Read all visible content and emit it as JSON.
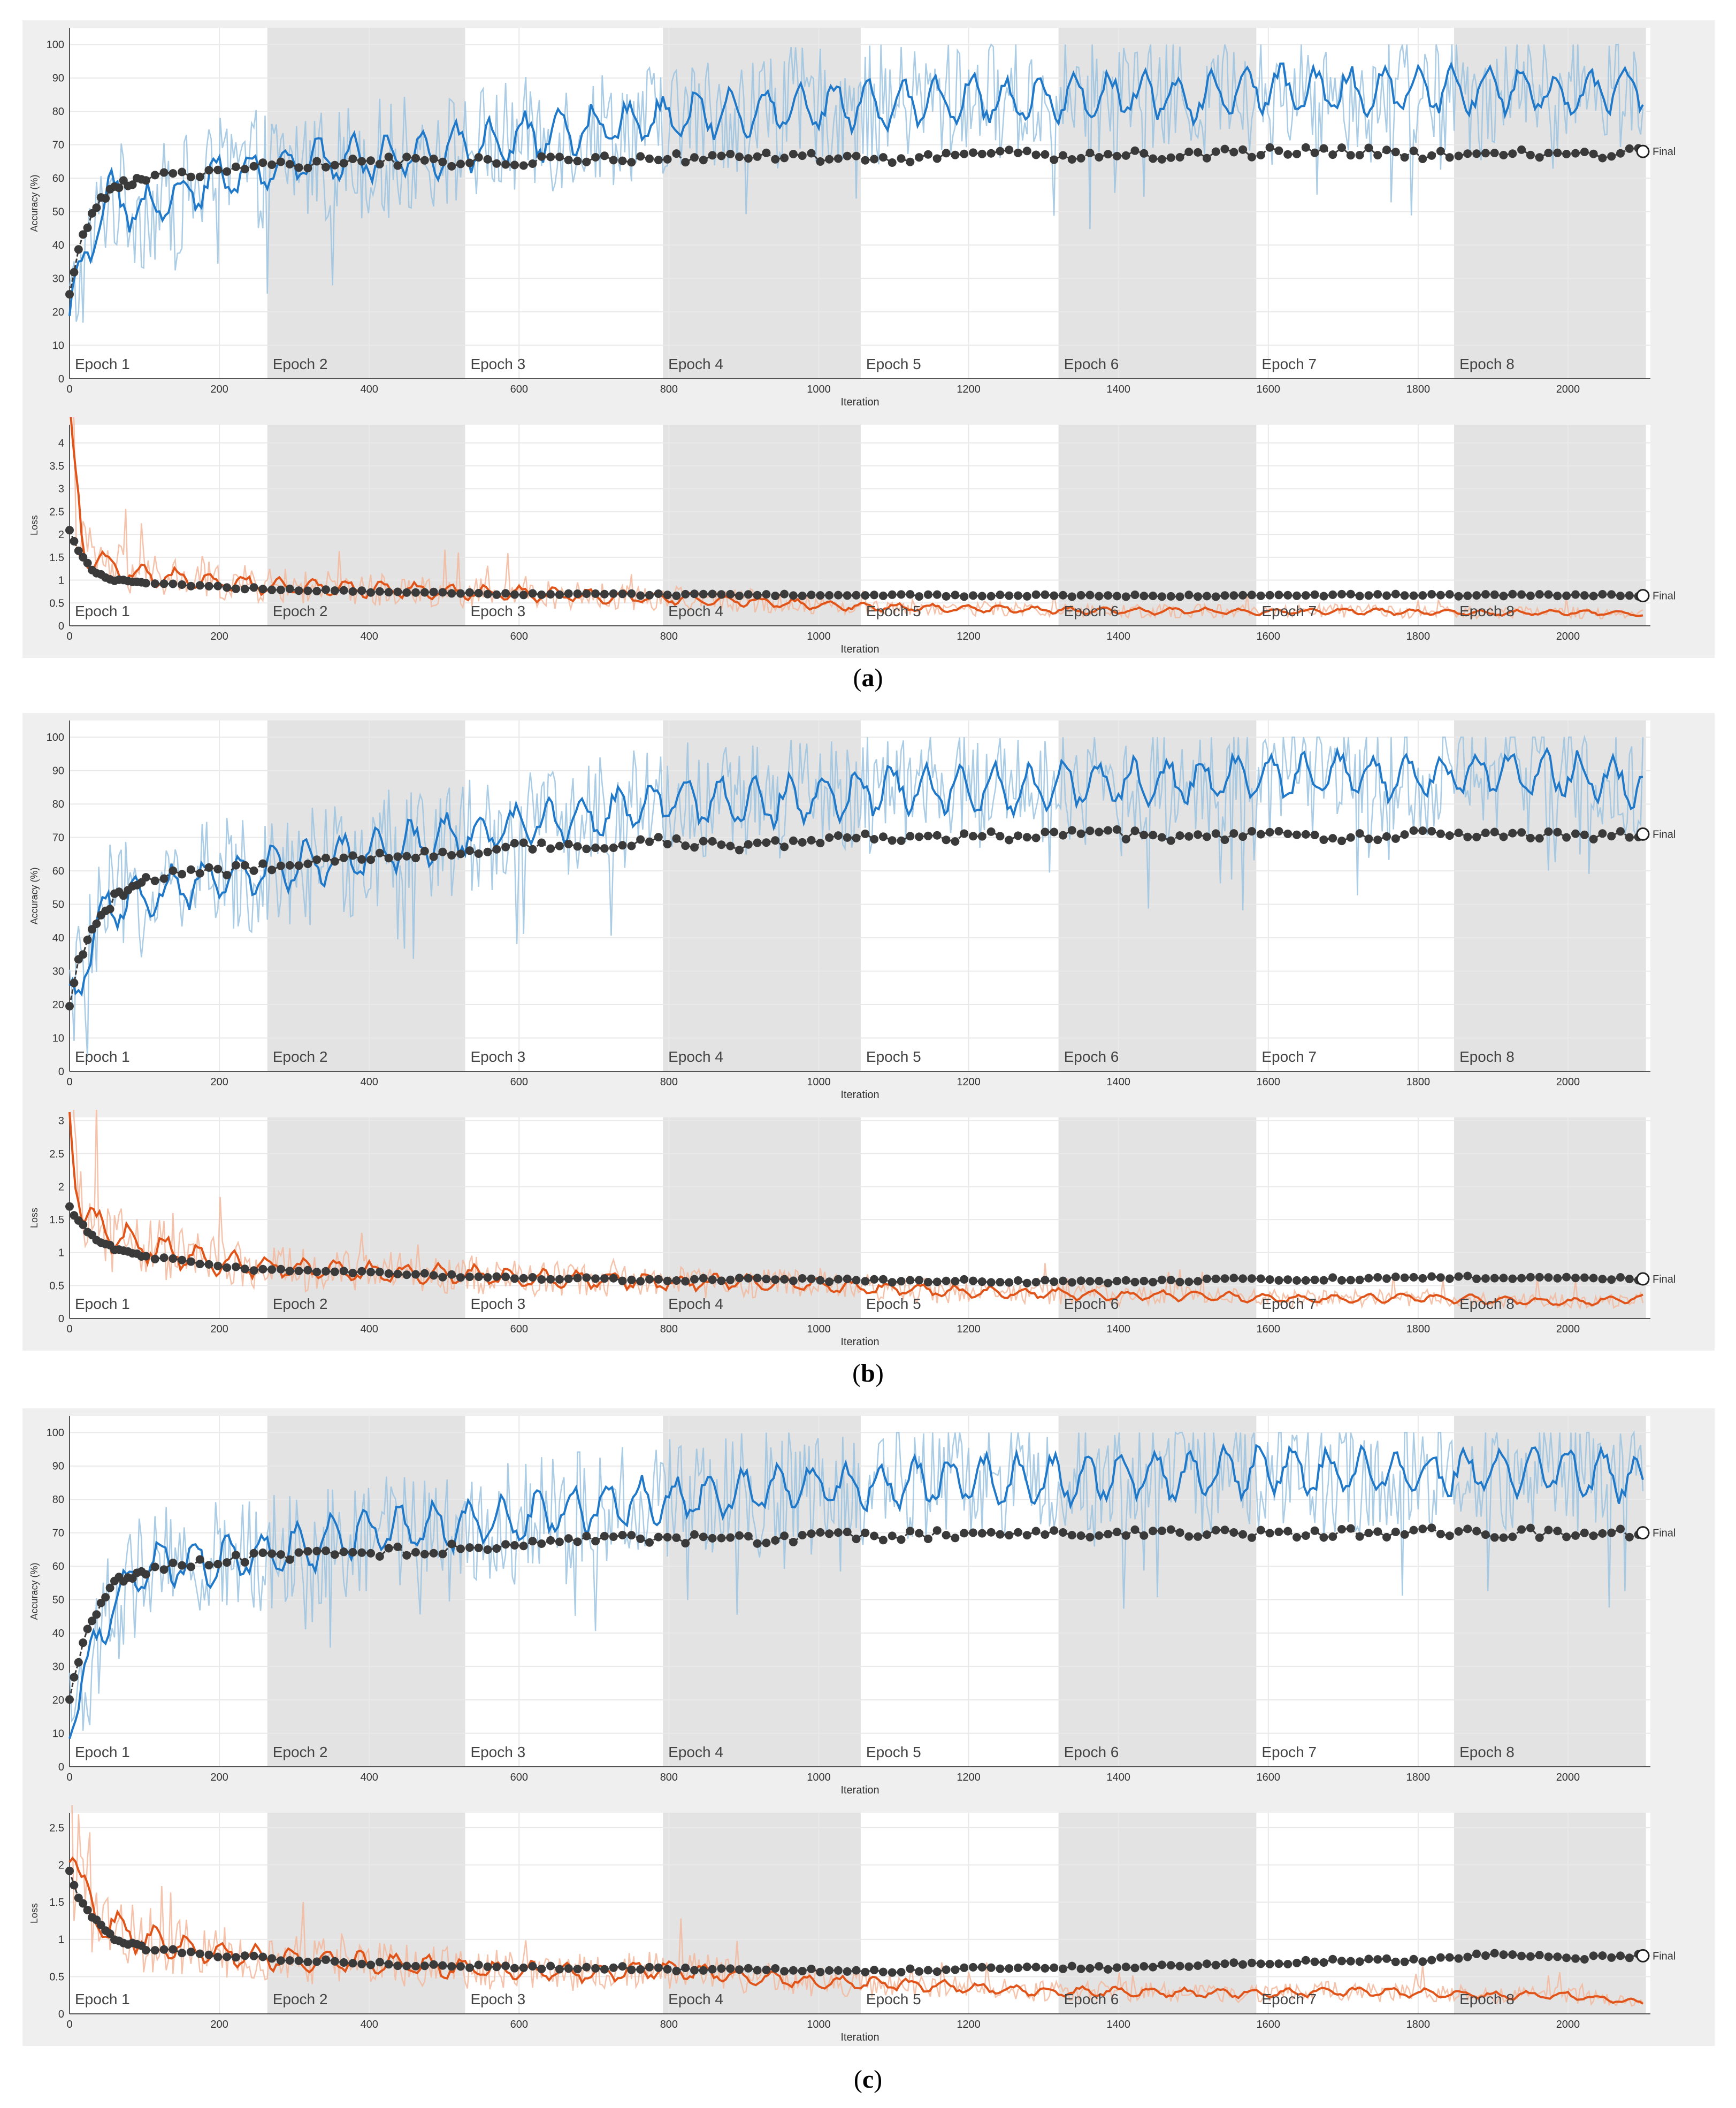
{
  "figure": {
    "panels": [
      {
        "caption_open": "(",
        "caption_letter": "a",
        "caption_close": ")"
      },
      {
        "caption_open": "(",
        "caption_letter": "b",
        "caption_close": ")"
      },
      {
        "caption_open": "(",
        "caption_letter": "c",
        "caption_close": ")"
      }
    ]
  },
  "colors": {
    "accuracy_smoothed": "#1f78c8",
    "accuracy_raw": "#9cc3e0",
    "loss_smoothed": "#e0541a",
    "loss_raw": "#f3b89c",
    "validation": "#3a3a3a",
    "epoch_shade": "#e3e3e3",
    "grid": "#e9e9e9"
  },
  "chart_data": [
    {
      "type": "line",
      "panel": "a",
      "metric": "accuracy",
      "xlabel": "Iteration",
      "ylabel": "Accuracy (%)",
      "xlim": [
        0,
        2110
      ],
      "ylim": [
        0,
        105
      ],
      "xticks": [
        0,
        200,
        400,
        600,
        800,
        1000,
        1200,
        1400,
        1600,
        1800,
        2000
      ],
      "yticks": [
        0,
        10,
        20,
        30,
        40,
        50,
        60,
        70,
        80,
        90,
        100
      ],
      "epochs": [
        "Epoch 1",
        "Epoch 2",
        "Epoch 3",
        "Epoch 4",
        "Epoch 5",
        "Epoch 6",
        "Epoch 7",
        "Epoch 8"
      ],
      "epoch_starts": [
        0,
        264,
        528,
        792,
        1056,
        1320,
        1584,
        1848
      ],
      "final_label": "Final",
      "series": [
        {
          "role": "training_smoothed",
          "x": [
            0,
            50,
            100,
            200,
            300,
            400,
            500,
            600,
            700,
            800,
            900,
            1000,
            1100,
            1200,
            1300,
            1400,
            1500,
            1600,
            1700,
            1800,
            1900,
            2000,
            2100
          ],
          "y": [
            20,
            55,
            50,
            60,
            65,
            66,
            68,
            72,
            75,
            78,
            80,
            82,
            82,
            84,
            83,
            85,
            84,
            87,
            86,
            86,
            87,
            85,
            88
          ]
        },
        {
          "role": "validation",
          "x": [
            0,
            10,
            30,
            60,
            100,
            200,
            300,
            400,
            500,
            600,
            700,
            800,
            900,
            1000,
            1100,
            1200,
            1300,
            1400,
            1500,
            1600,
            1700,
            1800,
            1900,
            2000,
            2100
          ],
          "y": [
            25,
            38,
            50,
            58,
            60,
            62,
            64,
            65,
            65,
            65,
            66,
            66,
            67,
            66,
            66,
            67,
            67,
            67,
            67,
            68,
            68,
            67,
            68,
            67,
            68
          ]
        }
      ]
    },
    {
      "type": "line",
      "panel": "a",
      "metric": "loss",
      "xlabel": "Iteration",
      "ylabel": "Loss",
      "xlim": [
        0,
        2110
      ],
      "ylim": [
        0,
        4.4
      ],
      "xticks": [
        0,
        200,
        400,
        600,
        800,
        1000,
        1200,
        1400,
        1600,
        1800,
        2000
      ],
      "yticks": [
        0,
        0.5,
        1,
        1.5,
        2,
        2.5,
        3,
        3.5,
        4
      ],
      "epochs": [
        "Epoch 1",
        "Epoch 2",
        "Epoch 3",
        "Epoch 4",
        "Epoch 5",
        "Epoch 6",
        "Epoch 7",
        "Epoch 8"
      ],
      "epoch_starts": [
        0,
        264,
        528,
        792,
        1056,
        1320,
        1584,
        1848
      ],
      "final_label": "Final",
      "series": [
        {
          "role": "training_smoothed",
          "x": [
            0,
            20,
            50,
            100,
            200,
            300,
            400,
            500,
            600,
            700,
            800,
            900,
            1000,
            1100,
            1200,
            1300,
            1400,
            1500,
            1600,
            1700,
            1800,
            1900,
            2000,
            2100
          ],
          "y": [
            4.2,
            1.6,
            1.3,
            1.1,
            0.95,
            0.85,
            0.8,
            0.75,
            0.7,
            0.65,
            0.6,
            0.55,
            0.45,
            0.4,
            0.38,
            0.35,
            0.32,
            0.33,
            0.3,
            0.33,
            0.3,
            0.28,
            0.3,
            0.25
          ]
        },
        {
          "role": "validation",
          "x": [
            0,
            10,
            30,
            60,
            100,
            200,
            300,
            400,
            500,
            600,
            700,
            800,
            900,
            1000,
            1100,
            1200,
            1300,
            1400,
            1500,
            1600,
            1700,
            1800,
            1900,
            2000,
            2100
          ],
          "y": [
            2.1,
            1.7,
            1.2,
            1.0,
            0.95,
            0.85,
            0.78,
            0.75,
            0.72,
            0.7,
            0.68,
            0.68,
            0.68,
            0.67,
            0.67,
            0.66,
            0.66,
            0.66,
            0.66,
            0.66,
            0.67,
            0.67,
            0.67,
            0.68,
            0.66
          ]
        }
      ]
    },
    {
      "type": "line",
      "panel": "b",
      "metric": "accuracy",
      "xlabel": "Iteration",
      "ylabel": "Accuracy (%)",
      "xlim": [
        0,
        2110
      ],
      "ylim": [
        0,
        105
      ],
      "xticks": [
        0,
        200,
        400,
        600,
        800,
        1000,
        1200,
        1400,
        1600,
        1800,
        2000
      ],
      "yticks": [
        0,
        10,
        20,
        30,
        40,
        50,
        60,
        70,
        80,
        90,
        100
      ],
      "epochs": [
        "Epoch 1",
        "Epoch 2",
        "Epoch 3",
        "Epoch 4",
        "Epoch 5",
        "Epoch 6",
        "Epoch 7",
        "Epoch 8"
      ],
      "epoch_starts": [
        0,
        264,
        528,
        792,
        1056,
        1320,
        1584,
        1848
      ],
      "final_label": "Final",
      "series": [
        {
          "role": "training_smoothed",
          "x": [
            0,
            50,
            100,
            200,
            300,
            400,
            500,
            600,
            700,
            800,
            900,
            1000,
            1100,
            1200,
            1300,
            1400,
            1500,
            1600,
            1700,
            1800,
            1900,
            2000,
            2100
          ],
          "y": [
            20,
            50,
            52,
            58,
            62,
            65,
            70,
            73,
            76,
            82,
            80,
            82,
            85,
            84,
            85,
            86,
            87,
            88,
            89,
            88,
            90,
            89,
            86
          ]
        },
        {
          "role": "validation",
          "x": [
            0,
            10,
            30,
            60,
            100,
            200,
            300,
            400,
            500,
            600,
            700,
            800,
            900,
            1000,
            1100,
            1200,
            1300,
            1400,
            1500,
            1600,
            1700,
            1800,
            1900,
            2000,
            2100
          ],
          "y": [
            20,
            32,
            42,
            52,
            58,
            60,
            62,
            64,
            66,
            67,
            68,
            69,
            67,
            69,
            70,
            70,
            71,
            71,
            70,
            71,
            70,
            71,
            71,
            71,
            71
          ]
        }
      ]
    },
    {
      "type": "line",
      "panel": "b",
      "metric": "loss",
      "xlabel": "Iteration",
      "ylabel": "Loss",
      "xlim": [
        0,
        2110
      ],
      "ylim": [
        0,
        3.05
      ],
      "xticks": [
        0,
        200,
        400,
        600,
        800,
        1000,
        1200,
        1400,
        1600,
        1800,
        2000
      ],
      "yticks": [
        0,
        0.5,
        1,
        1.5,
        2,
        2.5,
        3
      ],
      "epochs": [
        "Epoch 1",
        "Epoch 2",
        "Epoch 3",
        "Epoch 4",
        "Epoch 5",
        "Epoch 6",
        "Epoch 7",
        "Epoch 8"
      ],
      "epoch_starts": [
        0,
        264,
        528,
        792,
        1056,
        1320,
        1584,
        1848
      ],
      "final_label": "Final",
      "series": [
        {
          "role": "training_smoothed",
          "x": [
            0,
            20,
            50,
            100,
            200,
            300,
            400,
            500,
            600,
            700,
            800,
            900,
            1000,
            1100,
            1200,
            1300,
            1400,
            1500,
            1600,
            1700,
            1800,
            1900,
            2000,
            2100
          ],
          "y": [
            2.9,
            1.5,
            1.3,
            1.1,
            0.85,
            0.75,
            0.7,
            0.68,
            0.62,
            0.58,
            0.55,
            0.55,
            0.5,
            0.45,
            0.4,
            0.38,
            0.35,
            0.35,
            0.3,
            0.3,
            0.32,
            0.28,
            0.25,
            0.3
          ]
        },
        {
          "role": "validation",
          "x": [
            0,
            10,
            30,
            60,
            100,
            200,
            300,
            400,
            500,
            600,
            700,
            800,
            900,
            1000,
            1100,
            1200,
            1300,
            1400,
            1500,
            1600,
            1700,
            1800,
            1900,
            2000,
            2100
          ],
          "y": [
            1.7,
            1.5,
            1.25,
            1.05,
            0.95,
            0.78,
            0.72,
            0.7,
            0.65,
            0.62,
            0.6,
            0.58,
            0.6,
            0.58,
            0.57,
            0.57,
            0.56,
            0.56,
            0.58,
            0.6,
            0.6,
            0.62,
            0.62,
            0.62,
            0.6
          ]
        }
      ]
    },
    {
      "type": "line",
      "panel": "c",
      "metric": "accuracy",
      "xlabel": "Iteration",
      "ylabel": "Accuracy (%)",
      "xlim": [
        0,
        2110
      ],
      "ylim": [
        0,
        105
      ],
      "xticks": [
        0,
        200,
        400,
        600,
        800,
        1000,
        1200,
        1400,
        1600,
        1800,
        2000
      ],
      "yticks": [
        0,
        10,
        20,
        30,
        40,
        50,
        60,
        70,
        80,
        90,
        100
      ],
      "epochs": [
        "Epoch 1",
        "Epoch 2",
        "Epoch 3",
        "Epoch 4",
        "Epoch 5",
        "Epoch 6",
        "Epoch 7",
        "Epoch 8"
      ],
      "epoch_starts": [
        0,
        264,
        528,
        792,
        1056,
        1320,
        1584,
        1848
      ],
      "final_label": "Final",
      "series": [
        {
          "role": "training_smoothed",
          "x": [
            0,
            50,
            100,
            200,
            300,
            400,
            500,
            600,
            700,
            800,
            900,
            1000,
            1100,
            1200,
            1300,
            1400,
            1500,
            1600,
            1700,
            1800,
            1900,
            2000,
            2100
          ],
          "y": [
            15,
            45,
            60,
            62,
            65,
            70,
            72,
            74,
            78,
            80,
            82,
            84,
            84,
            86,
            86,
            87,
            87,
            89,
            88,
            88,
            89,
            89,
            85
          ]
        },
        {
          "role": "validation",
          "x": [
            0,
            10,
            30,
            60,
            100,
            200,
            300,
            400,
            500,
            600,
            700,
            800,
            900,
            1000,
            1100,
            1200,
            1300,
            1400,
            1500,
            1600,
            1700,
            1800,
            1900,
            2000,
            2100
          ],
          "y": [
            20,
            30,
            45,
            55,
            58,
            62,
            63,
            64,
            65,
            67,
            68,
            68,
            68,
            69,
            69,
            70,
            70,
            70,
            70,
            70,
            70,
            70,
            70,
            70,
            70
          ]
        }
      ]
    },
    {
      "type": "line",
      "panel": "c",
      "metric": "loss",
      "xlabel": "Iteration",
      "ylabel": "Loss",
      "xlim": [
        0,
        2110
      ],
      "ylim": [
        0,
        2.7
      ],
      "xticks": [
        0,
        200,
        400,
        600,
        800,
        1000,
        1200,
        1400,
        1600,
        1800,
        2000
      ],
      "yticks": [
        0,
        0.5,
        1,
        1.5,
        2,
        2.5
      ],
      "epochs": [
        "Epoch 1",
        "Epoch 2",
        "Epoch 3",
        "Epoch 4",
        "Epoch 5",
        "Epoch 6",
        "Epoch 7",
        "Epoch 8"
      ],
      "epoch_starts": [
        0,
        264,
        528,
        792,
        1056,
        1320,
        1584,
        1848
      ],
      "final_label": "Final",
      "series": [
        {
          "role": "training_smoothed",
          "x": [
            0,
            20,
            50,
            100,
            200,
            300,
            400,
            500,
            600,
            700,
            800,
            900,
            1000,
            1100,
            1200,
            1300,
            1400,
            1500,
            1600,
            1700,
            1800,
            1900,
            2000,
            2100
          ],
          "y": [
            2.4,
            1.5,
            1.2,
            1.0,
            0.8,
            0.72,
            0.68,
            0.62,
            0.58,
            0.55,
            0.6,
            0.5,
            0.42,
            0.4,
            0.35,
            0.3,
            0.3,
            0.28,
            0.28,
            0.3,
            0.28,
            0.25,
            0.25,
            0.15
          ]
        },
        {
          "role": "validation",
          "x": [
            0,
            10,
            30,
            60,
            100,
            200,
            300,
            400,
            500,
            600,
            700,
            800,
            900,
            1000,
            1100,
            1200,
            1300,
            1400,
            1500,
            1600,
            1700,
            1800,
            1900,
            2000,
            2100
          ],
          "y": [
            1.9,
            1.6,
            1.3,
            1.0,
            0.88,
            0.78,
            0.72,
            0.68,
            0.65,
            0.62,
            0.62,
            0.6,
            0.6,
            0.58,
            0.58,
            0.6,
            0.62,
            0.62,
            0.65,
            0.68,
            0.72,
            0.72,
            0.8,
            0.75,
            0.78
          ]
        }
      ]
    }
  ]
}
